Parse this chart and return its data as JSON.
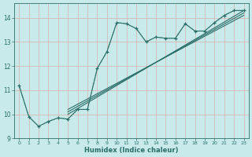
{
  "xlabel": "Humidex (Indice chaleur)",
  "xlim": [
    -0.5,
    23.5
  ],
  "ylim": [
    9,
    14.6
  ],
  "yticks": [
    9,
    10,
    11,
    12,
    13,
    14
  ],
  "xticks": [
    0,
    1,
    2,
    3,
    4,
    5,
    6,
    7,
    8,
    9,
    10,
    11,
    12,
    13,
    14,
    15,
    16,
    17,
    18,
    19,
    20,
    21,
    22,
    23
  ],
  "bg_color": "#c8eaea",
  "grid_color": "#b0d8d8",
  "line_color": "#2a6e68",
  "dotted_x": [
    0,
    1,
    2,
    3,
    4,
    5,
    6,
    7,
    8,
    9,
    10,
    11,
    12,
    13,
    14,
    15,
    16,
    17,
    18,
    19,
    20,
    21,
    22,
    23
  ],
  "dotted_y": [
    11.2,
    9.9,
    9.5,
    9.7,
    9.85,
    9.8,
    10.2,
    10.2,
    11.9,
    12.6,
    13.8,
    13.75,
    13.55,
    13.0,
    13.2,
    13.15,
    13.15,
    13.75,
    13.45,
    13.45,
    13.8,
    14.1,
    14.3,
    14.3
  ],
  "solid_x": [
    0,
    1,
    2,
    3,
    4,
    5,
    6,
    7,
    8,
    9,
    10,
    11,
    12,
    13,
    14,
    15,
    16,
    17,
    18,
    19,
    20,
    21,
    22,
    23
  ],
  "solid_y": [
    11.2,
    9.9,
    9.5,
    9.7,
    9.85,
    9.8,
    10.2,
    10.2,
    11.9,
    12.6,
    13.8,
    13.75,
    13.55,
    13.0,
    13.2,
    13.15,
    13.15,
    13.75,
    13.45,
    13.45,
    13.8,
    14.1,
    14.3,
    14.3
  ],
  "reg_lines": [
    {
      "x": [
        5,
        23
      ],
      "y": [
        10.0,
        14.3
      ]
    },
    {
      "x": [
        5,
        23
      ],
      "y": [
        10.1,
        14.2
      ]
    },
    {
      "x": [
        5,
        23
      ],
      "y": [
        10.2,
        14.1
      ]
    }
  ]
}
